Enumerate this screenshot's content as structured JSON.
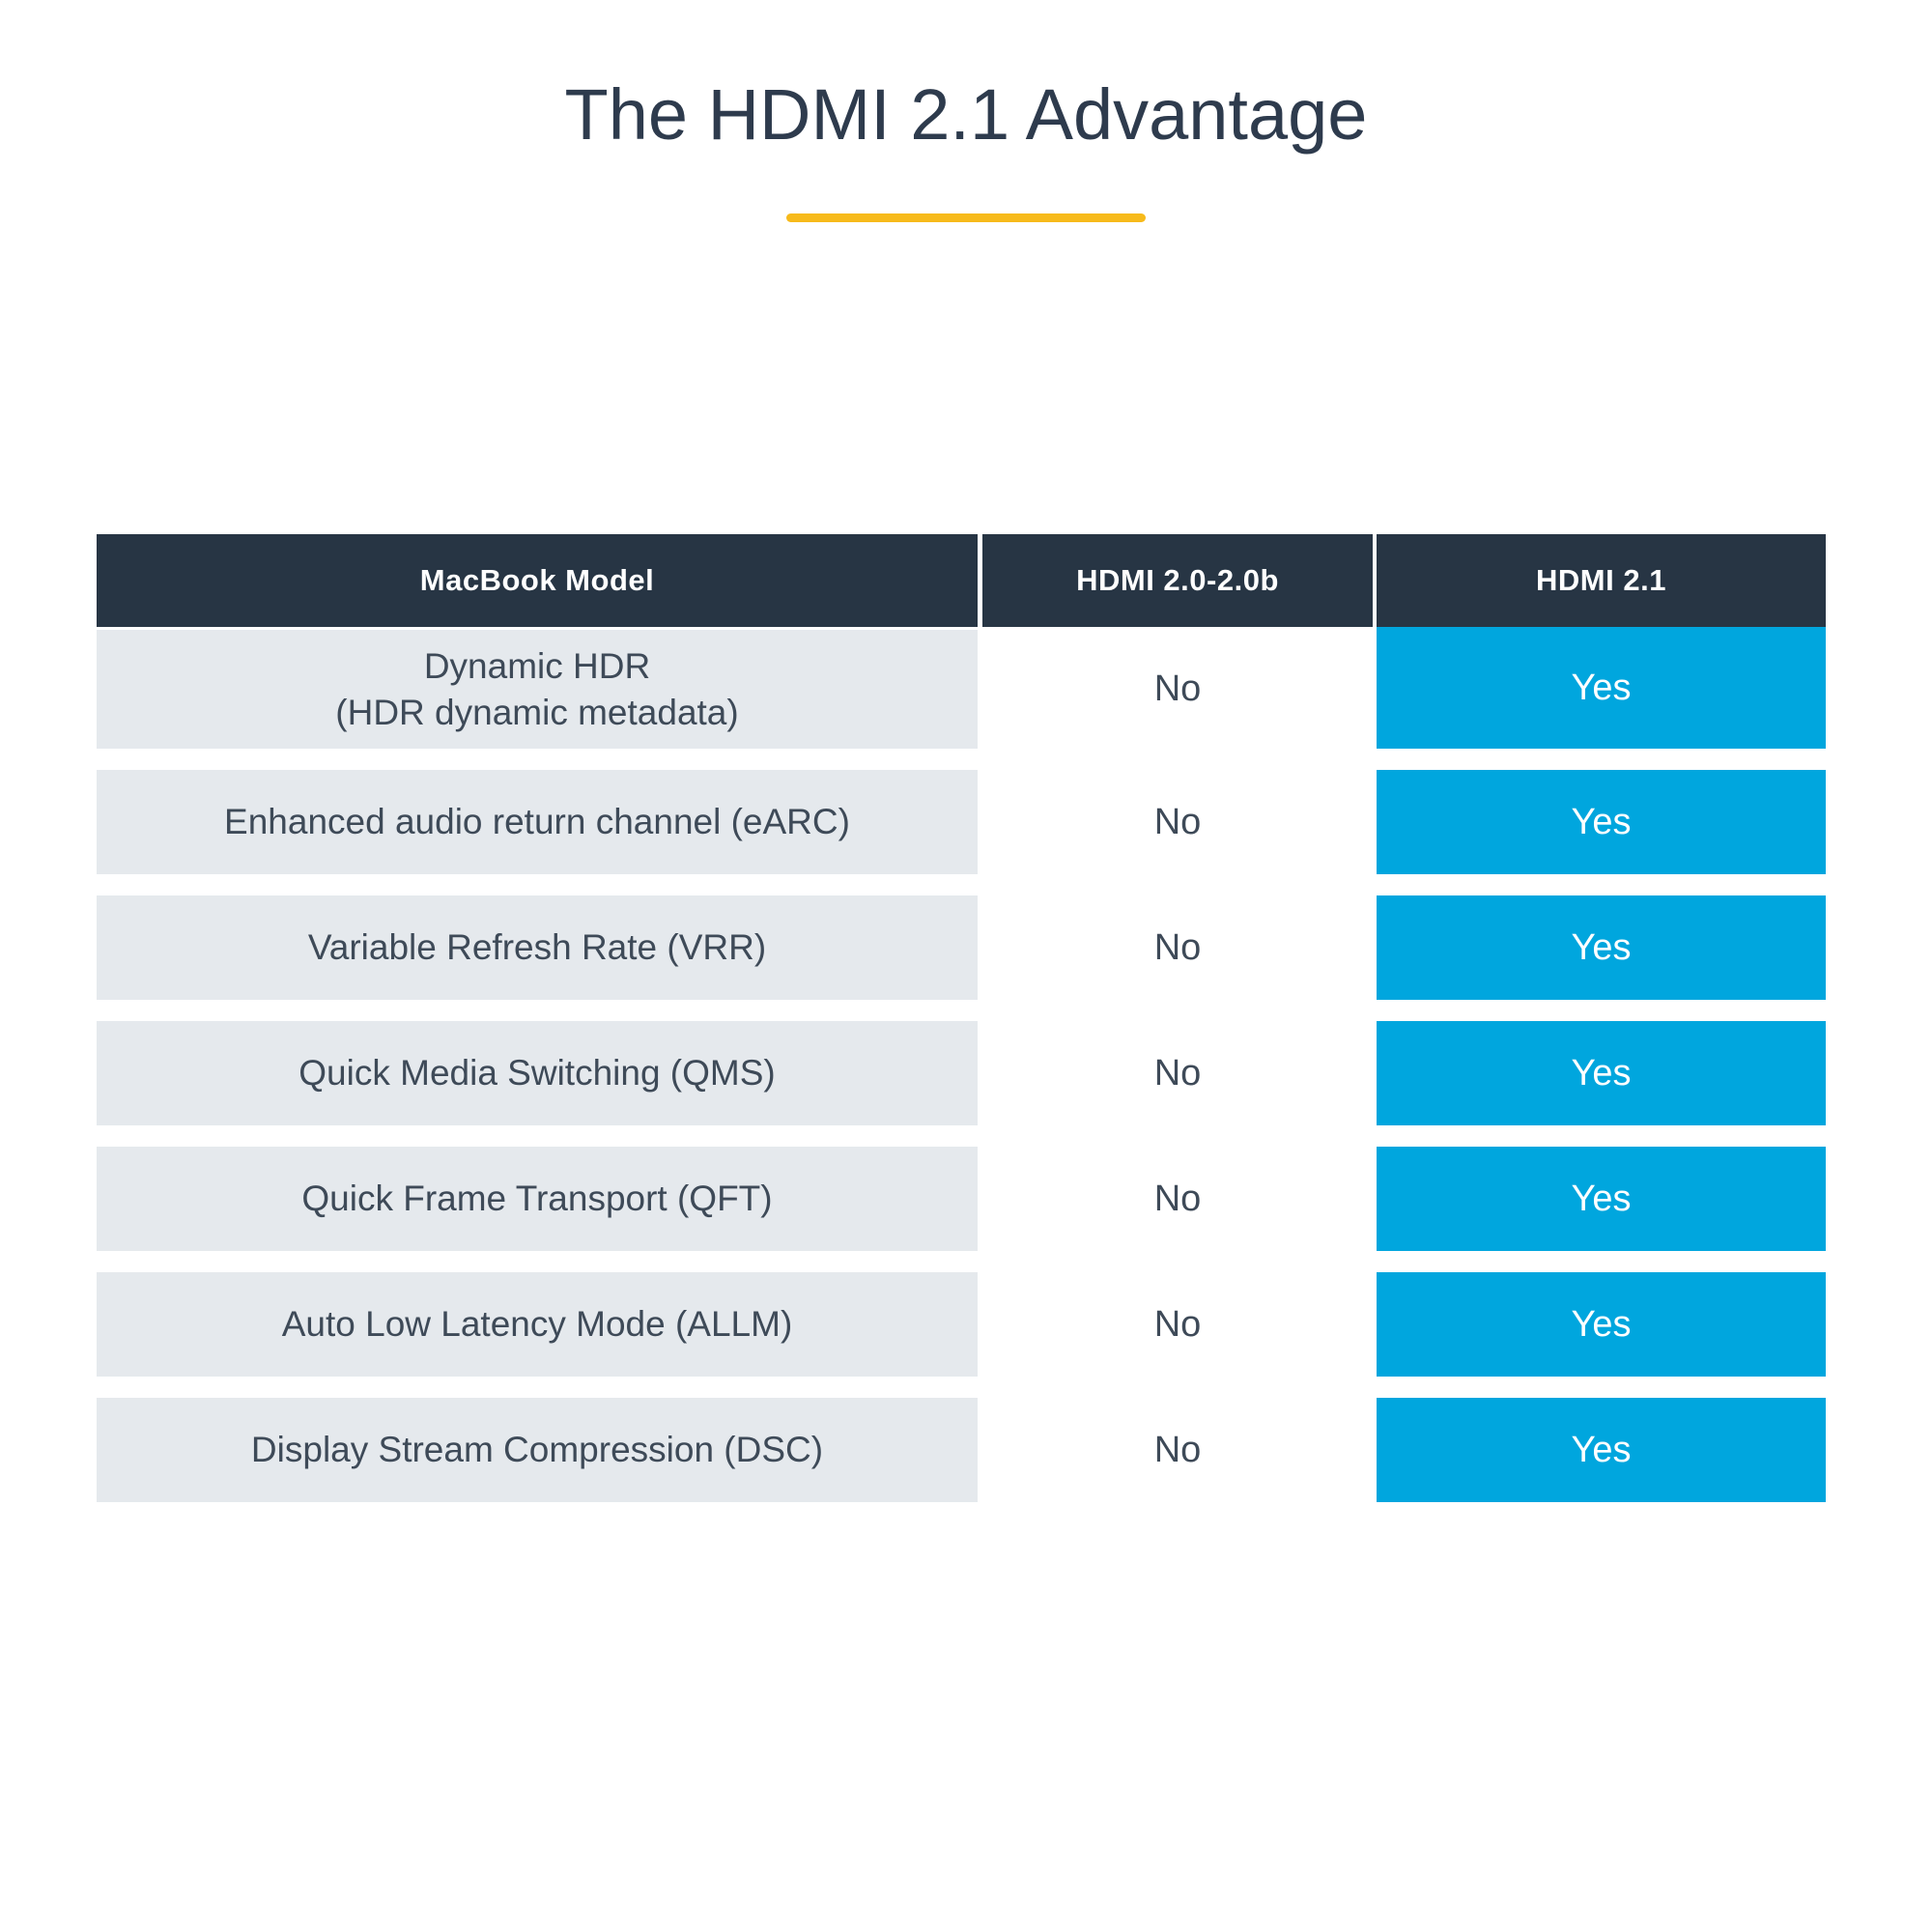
{
  "title": "The HDMI 2.1 Advantage",
  "colors": {
    "header_bg": "#273544",
    "row_bg": "#e5e9ed",
    "yes_bg": "#00a6de",
    "accent": "#f7ba1b",
    "title_text": "#2e3b4d",
    "body_text": "#3e4a58"
  },
  "table": {
    "headers": [
      "MacBook Model",
      "HDMI 2.0-2.0b",
      "HDMI 2.1"
    ],
    "rows": [
      {
        "feature": [
          "Dynamic HDR",
          "(HDR dynamic metadata)"
        ],
        "hdmi20": "No",
        "hdmi21": "Yes"
      },
      {
        "feature": [
          "Enhanced audio return channel (eARC)"
        ],
        "hdmi20": "No",
        "hdmi21": "Yes"
      },
      {
        "feature": [
          "Variable Refresh Rate (VRR)"
        ],
        "hdmi20": "No",
        "hdmi21": "Yes"
      },
      {
        "feature": [
          "Quick Media Switching (QMS)"
        ],
        "hdmi20": "No",
        "hdmi21": "Yes"
      },
      {
        "feature": [
          "Quick Frame Transport (QFT)"
        ],
        "hdmi20": "No",
        "hdmi21": "Yes"
      },
      {
        "feature": [
          "Auto Low Latency Mode (ALLM)"
        ],
        "hdmi20": "No",
        "hdmi21": "Yes"
      },
      {
        "feature": [
          "Display Stream Compression (DSC)"
        ],
        "hdmi20": "No",
        "hdmi21": "Yes"
      }
    ]
  },
  "chart_data": {
    "type": "table",
    "title": "The HDMI 2.1 Advantage",
    "columns": [
      "MacBook Model",
      "HDMI 2.0-2.0b",
      "HDMI 2.1"
    ],
    "rows": [
      [
        "Dynamic HDR (HDR dynamic metadata)",
        "No",
        "Yes"
      ],
      [
        "Enhanced audio return channel (eARC)",
        "No",
        "Yes"
      ],
      [
        "Variable Refresh Rate (VRR)",
        "No",
        "Yes"
      ],
      [
        "Quick Media Switching (QMS)",
        "No",
        "Yes"
      ],
      [
        "Quick Frame Transport (QFT)",
        "No",
        "Yes"
      ],
      [
        "Auto Low Latency Mode (ALLM)",
        "No",
        "Yes"
      ],
      [
        "Display Stream Compression (DSC)",
        "No",
        "Yes"
      ]
    ],
    "legend_position": "none",
    "grid": false
  }
}
